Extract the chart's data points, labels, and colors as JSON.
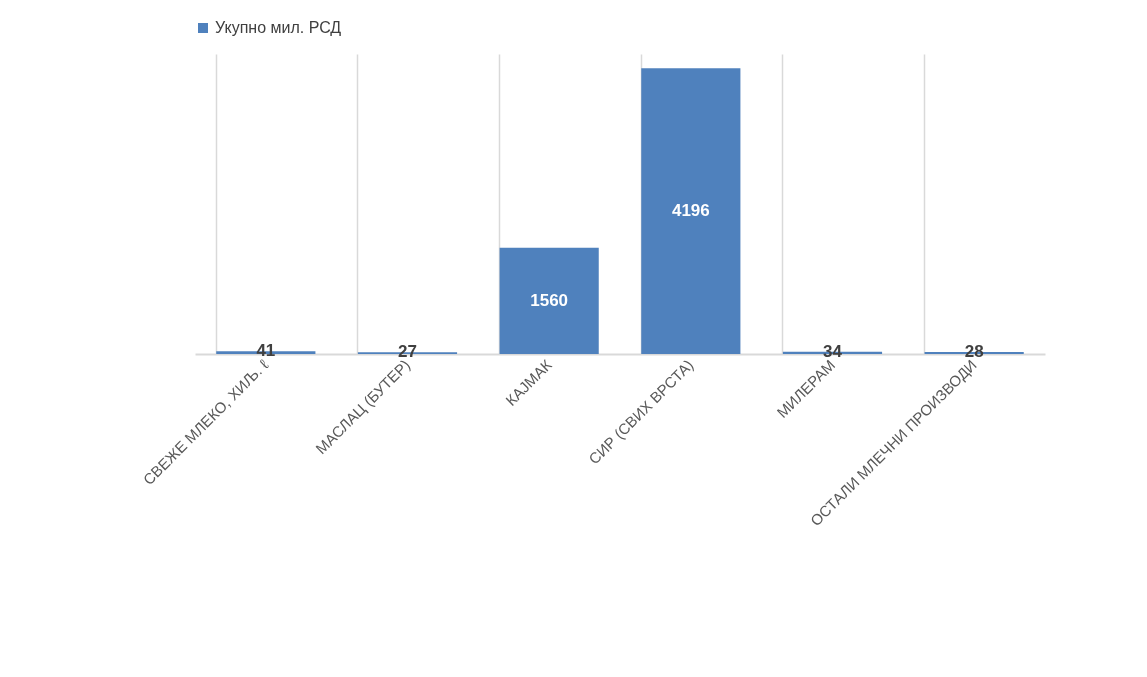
{
  "chart_data": {
    "type": "bar",
    "categories": [
      "СВЕЖЕ МЛЕКО, ХИЉ. ℓ",
      "МАСЛАЦ (БУТЕР)",
      "КАЈМАК",
      "СИР (СВИХ ВРСТА)",
      "МИЛЕРАМ",
      "ОСТАЛИ МЛЕЧНИ ПРОИЗВОДИ"
    ],
    "series": [
      {
        "name": "Укупно мил. РСД",
        "color": "#4f81bd",
        "values": [
          41,
          27,
          1560,
          4196,
          34,
          28
        ]
      }
    ],
    "data_labels": true,
    "grid": "x",
    "legend": "top"
  }
}
